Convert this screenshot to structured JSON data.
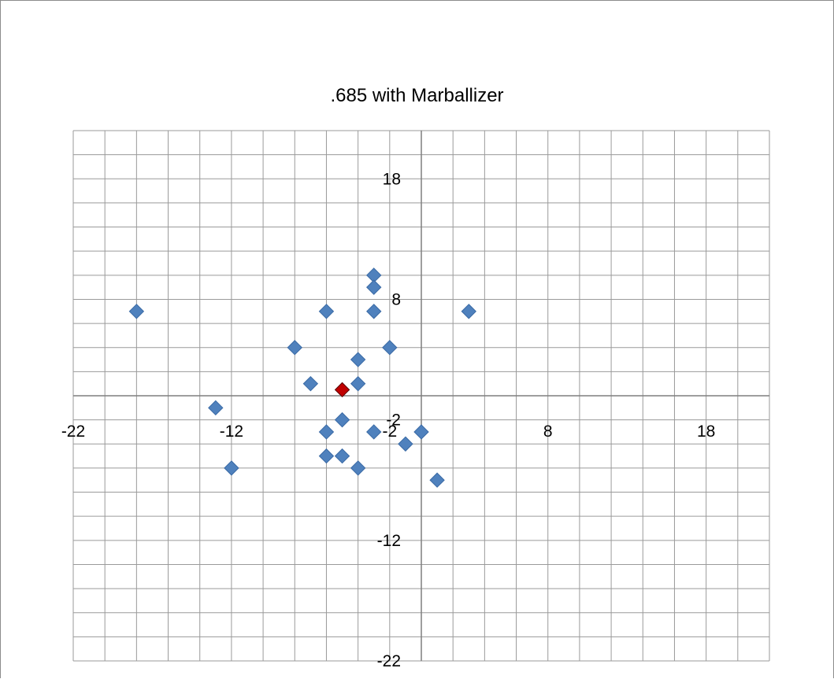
{
  "chart_data": {
    "type": "scatter",
    "title": ".685 with Marballizer",
    "xlabel": "",
    "ylabel": "",
    "xlim": [
      -22,
      22
    ],
    "ylim": [
      -22,
      22
    ],
    "grid": true,
    "x_tick_labels": [
      {
        "value": -22,
        "label": "-22"
      },
      {
        "value": -12,
        "label": "-12"
      },
      {
        "value": -2,
        "label": "-2"
      },
      {
        "value": 8,
        "label": "8"
      },
      {
        "value": 18,
        "label": "18"
      }
    ],
    "y_tick_labels": [
      {
        "value": 18,
        "label": "18"
      },
      {
        "value": 8,
        "label": "8"
      },
      {
        "value": -2,
        "label": "-2"
      },
      {
        "value": -12,
        "label": "-12"
      },
      {
        "value": -22,
        "label": "-22"
      }
    ],
    "series": [
      {
        "color": "#4f81bd",
        "points": [
          {
            "x": -18,
            "y": 7
          },
          {
            "x": -13,
            "y": -1
          },
          {
            "x": -12,
            "y": -6
          },
          {
            "x": -8,
            "y": 4
          },
          {
            "x": -7,
            "y": 1
          },
          {
            "x": -6,
            "y": 7
          },
          {
            "x": -6,
            "y": -3
          },
          {
            "x": -6,
            "y": -5
          },
          {
            "x": -5,
            "y": -2
          },
          {
            "x": -5,
            "y": -5
          },
          {
            "x": -4,
            "y": 3
          },
          {
            "x": -4,
            "y": 1
          },
          {
            "x": -4,
            "y": -6
          },
          {
            "x": -3,
            "y": 10
          },
          {
            "x": -3,
            "y": 9
          },
          {
            "x": -3,
            "y": 7
          },
          {
            "x": -3,
            "y": -3
          },
          {
            "x": -2,
            "y": 4
          },
          {
            "x": -1,
            "y": -4
          },
          {
            "x": 0,
            "y": -3
          },
          {
            "x": 1,
            "y": -7
          },
          {
            "x": 3,
            "y": 7
          }
        ]
      },
      {
        "color": "#c00000",
        "points": [
          {
            "x": -5,
            "y": 0.5
          }
        ]
      }
    ]
  }
}
